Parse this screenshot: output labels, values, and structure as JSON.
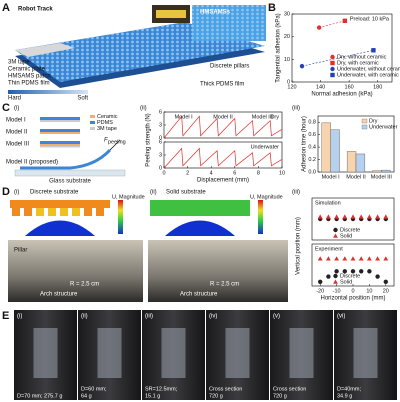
{
  "figure": {
    "A": {
      "label": "A",
      "robot_track": "Robot Track",
      "hmsamss": "HMSAMSs",
      "tape": "3M tape",
      "ceramic": "Ceramic plate",
      "patch": "HMSAMS patch",
      "thin": "Thin PDMS film",
      "pillars": "Discrete pillars",
      "thick": "Thick PDMS film",
      "hard": "Hard",
      "soft": "Soft"
    },
    "B": {
      "label": "B"
    },
    "C": {
      "label": "C",
      "sub": [
        "(i)",
        "(ii)",
        "(iii)"
      ],
      "models": [
        "Model I",
        "Model II",
        "Model III"
      ],
      "legend": [
        "Ceramic",
        "PDMS",
        "3M tape"
      ],
      "force": "F",
      "force_sub": "peeling",
      "proposed": "Model II (proposed)",
      "glass": "Glass substrate",
      "y_label": "Peeling strength (N)"
    },
    "D": {
      "label": "D",
      "sub": [
        "(i)",
        "(ii)",
        "(iii)"
      ],
      "discrete": "Discrete substrate",
      "solid": "Solid substrate",
      "u_mag": [
        "U, Magnitude",
        "U, Magnitude"
      ],
      "pillar": "Pillar",
      "arch": [
        "Arch structure",
        "Arch structure"
      ],
      "radius": [
        "R = 2.5 cm",
        "R = 2.5 cm"
      ],
      "y_label": "Vertical position (mm)"
    },
    "E": {
      "label": "E",
      "sub": [
        "(i)",
        "(ii)",
        "(iii)",
        "(iv)",
        "(v)",
        "(vi)"
      ],
      "captions": [
        [
          "D=70 mm; 275.7 g"
        ],
        [
          "D=60 mm;",
          "64 g"
        ],
        [
          "SR=12.5mm;",
          "15.1 g"
        ],
        [
          "Cross section",
          "720 g"
        ],
        [
          "Cross section",
          "720 g"
        ],
        [
          "D=40mm;",
          "34.9 g"
        ]
      ]
    }
  },
  "chart_data": [
    {
      "type": "scatter",
      "title": "Preload: 10 kPa",
      "x_label": "Normal adhesion (kPa)",
      "y_label": "Tangential adhesion (kPa)",
      "xlim": [
        120,
        190
      ],
      "xticks": [
        120,
        140,
        160,
        180
      ],
      "ylim": [
        0,
        30
      ],
      "yticks": [
        0,
        10,
        20,
        30
      ],
      "legend": "lower right",
      "series": [
        {
          "name": "Dry, without ceramic",
          "color": "#e0302a",
          "marker": "circle",
          "x": [
            139
          ],
          "values": [
            24
          ]
        },
        {
          "name": "Dry, with ceramic",
          "color": "#e0302a",
          "marker": "square",
          "x": [
            157
          ],
          "values": [
            27
          ]
        },
        {
          "name": "Underwater, without ceramic",
          "color": "#2b3fb5",
          "marker": "circle",
          "x": [
            127
          ],
          "values": [
            7
          ]
        },
        {
          "name": "Underwater, with ceramic",
          "color": "#2b3fb5",
          "marker": "square",
          "x": [
            177
          ],
          "values": [
            14
          ]
        }
      ]
    },
    {
      "type": "line",
      "title": "Dry",
      "annotations": [
        "Model I",
        "Model II",
        "Model III"
      ],
      "xlim": [
        0,
        10
      ],
      "ylim": [
        0,
        6
      ],
      "yticks": [
        0,
        3,
        6
      ],
      "series": [
        {
          "color": "#e0302a",
          "x": [
            0,
            1.5,
            1.6,
            3,
            3.1,
            4.5,
            4.6,
            6,
            6.1,
            7.5,
            7.6,
            9,
            9.1,
            10
          ],
          "values": [
            0,
            5,
            0.5,
            5,
            0.5,
            4.5,
            0.5,
            4.5,
            0.5,
            4,
            0.5,
            4,
            0.5,
            2
          ]
        }
      ]
    },
    {
      "type": "line",
      "title": "Underwater",
      "x_label": "Displacement (mm)",
      "xlim": [
        0,
        10
      ],
      "xticks": [
        0,
        2,
        4,
        6,
        8,
        10
      ],
      "ylim": [
        0,
        6
      ],
      "yticks": [
        0,
        3,
        6
      ],
      "series": [
        {
          "color": "#e0302a",
          "x": [
            0,
            1.5,
            1.6,
            3,
            3.1,
            4.5,
            4.6,
            6,
            6.1,
            7.5,
            7.6,
            9,
            9.1,
            10
          ],
          "values": [
            0,
            4.5,
            0.5,
            4.5,
            0.5,
            4,
            0.5,
            4,
            0.5,
            3.5,
            0.5,
            3.5,
            0.5,
            2
          ]
        }
      ]
    },
    {
      "type": "bar",
      "y_label": "Adhesion time (hour)",
      "categories": [
        "Model I",
        "Model II",
        "Model III"
      ],
      "ylim": [
        0,
        0.9
      ],
      "yticks": [
        {
          "value": 0,
          "label": "0.0"
        },
        0.2,
        0.4,
        0.6,
        0.8
      ],
      "legend": "upper right",
      "series": [
        {
          "name": "Dry",
          "color": "#f7d3ae",
          "values": [
            0.79,
            0.33,
            0.02
          ]
        },
        {
          "name": "Underwater",
          "color": "#b6d0ee",
          "values": [
            0.68,
            0.29,
            0.03
          ]
        }
      ]
    },
    {
      "type": "scatter",
      "title": "Simulation",
      "xlim": [
        -25,
        25
      ],
      "ylim": [
        -10,
        10
      ],
      "legend": "lower center",
      "series": [
        {
          "name": "Discrete",
          "color": "#222222",
          "marker": "circle",
          "x": [
            -20,
            -15,
            -10,
            -5,
            0,
            5,
            10,
            15,
            20
          ],
          "values": [
            0,
            0,
            0,
            0,
            0,
            0,
            0,
            0,
            0
          ]
        },
        {
          "name": "Solid",
          "color": "#e0302a",
          "marker": "triangle",
          "x": [
            -20,
            -15,
            -10,
            -5,
            0,
            5,
            10,
            15,
            20
          ],
          "values": [
            1,
            1,
            1,
            1,
            1,
            1,
            1,
            1,
            1
          ]
        }
      ]
    },
    {
      "type": "scatter",
      "title": "Experiment",
      "x_label": "Horizontal position (mm)",
      "xlim": [
        -25,
        25
      ],
      "xticks": [
        -20,
        -10,
        0,
        10,
        20
      ],
      "ylim": [
        -10,
        10
      ],
      "legend": "lower center",
      "series": [
        {
          "name": "Discrete",
          "color": "#222222",
          "marker": "circle",
          "x": [
            -20,
            -15,
            -10,
            -5,
            0,
            5,
            10,
            15,
            20
          ],
          "values": [
            -8,
            -5.5,
            -3,
            -3,
            -3,
            -3,
            -3,
            -5.5,
            -8
          ]
        },
        {
          "name": "Solid",
          "color": "#e0302a",
          "marker": "triangle",
          "x": [
            -20,
            -15,
            -10,
            -5,
            0,
            5,
            10,
            15,
            20
          ],
          "values": [
            3,
            3,
            3,
            3,
            3,
            3,
            3,
            3,
            3
          ]
        }
      ]
    }
  ]
}
